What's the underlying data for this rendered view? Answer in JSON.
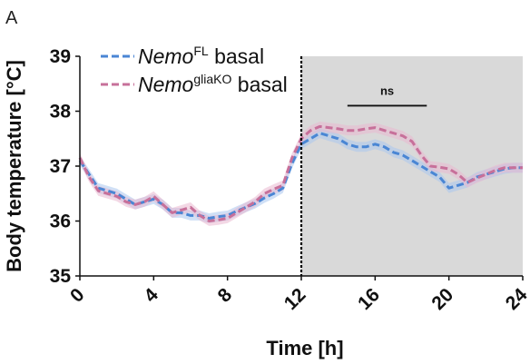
{
  "panel_label": "A",
  "chart_data": {
    "type": "line",
    "xlabel": "Time [h]",
    "ylabel": "Body temperature [°C]",
    "xlim": [
      0,
      24
    ],
    "ylim": [
      35,
      39
    ],
    "xticks": [
      "0",
      "4",
      "8",
      "12",
      "16",
      "20",
      "24"
    ],
    "yticks": [
      "35",
      "36",
      "37",
      "38",
      "39"
    ],
    "grid": false,
    "legend_position": "top-left",
    "dark_phase": {
      "from": 12,
      "to": 24,
      "color": "#d9d9d9"
    },
    "lights_off_marker": 12,
    "significance": {
      "label": "ns",
      "from": 14.5,
      "to": 18.8,
      "y": 38.1
    },
    "series": [
      {
        "name": "Nemo",
        "name_sup": "FL",
        "name_suffix": " basal",
        "color": "#4a86d4",
        "band_color": "#a9c6ee",
        "x": [
          0,
          0.5,
          1,
          1.5,
          2,
          2.5,
          3,
          3.5,
          4,
          4.5,
          5,
          5.5,
          6,
          6.5,
          7,
          7.5,
          8,
          8.5,
          9,
          9.5,
          10,
          10.5,
          11,
          11.5,
          12,
          12.5,
          13,
          13.5,
          14,
          14.5,
          15,
          15.5,
          16,
          16.5,
          17,
          17.5,
          18,
          18.5,
          19,
          19.5,
          20,
          20.5,
          21,
          21.5,
          22,
          22.5,
          23,
          23.5,
          24
        ],
        "y": [
          37.1,
          36.85,
          36.6,
          36.55,
          36.5,
          36.4,
          36.3,
          36.35,
          36.4,
          36.3,
          36.15,
          36.15,
          36.1,
          36.1,
          36.05,
          36.08,
          36.1,
          36.18,
          36.25,
          36.32,
          36.42,
          36.5,
          36.6,
          37.05,
          37.4,
          37.5,
          37.6,
          37.55,
          37.5,
          37.4,
          37.35,
          37.35,
          37.4,
          37.35,
          37.25,
          37.2,
          37.1,
          37.0,
          36.9,
          36.8,
          36.6,
          36.65,
          36.7,
          36.8,
          36.85,
          36.9,
          36.95,
          36.97,
          36.97
        ],
        "error": 0.09
      },
      {
        "name": "Nemo",
        "name_sup": "gliaKO",
        "name_suffix": " basal",
        "color": "#c7709a",
        "band_color": "#eab8d0",
        "x": [
          0,
          0.5,
          1,
          1.5,
          2,
          2.5,
          3,
          3.5,
          4,
          4.5,
          5,
          5.5,
          6,
          6.5,
          7,
          7.5,
          8,
          8.5,
          9,
          9.5,
          10,
          10.5,
          11,
          11.5,
          12,
          12.5,
          13,
          13.5,
          14,
          14.5,
          15,
          15.5,
          16,
          16.5,
          17,
          17.5,
          18,
          18.5,
          19,
          19.5,
          20,
          20.5,
          21,
          21.5,
          22,
          22.5,
          23,
          23.5,
          24
        ],
        "y": [
          37.15,
          36.8,
          36.55,
          36.5,
          36.45,
          36.35,
          36.3,
          36.35,
          36.45,
          36.3,
          36.15,
          36.2,
          36.25,
          36.1,
          36.0,
          36.02,
          36.05,
          36.15,
          36.25,
          36.35,
          36.5,
          36.58,
          36.65,
          37.15,
          37.5,
          37.65,
          37.72,
          37.7,
          37.68,
          37.65,
          37.65,
          37.68,
          37.7,
          37.65,
          37.6,
          37.55,
          37.45,
          37.2,
          37.0,
          36.98,
          36.95,
          36.85,
          36.7,
          36.78,
          36.85,
          36.92,
          36.97,
          36.97,
          36.97
        ],
        "error": 0.09
      }
    ]
  }
}
